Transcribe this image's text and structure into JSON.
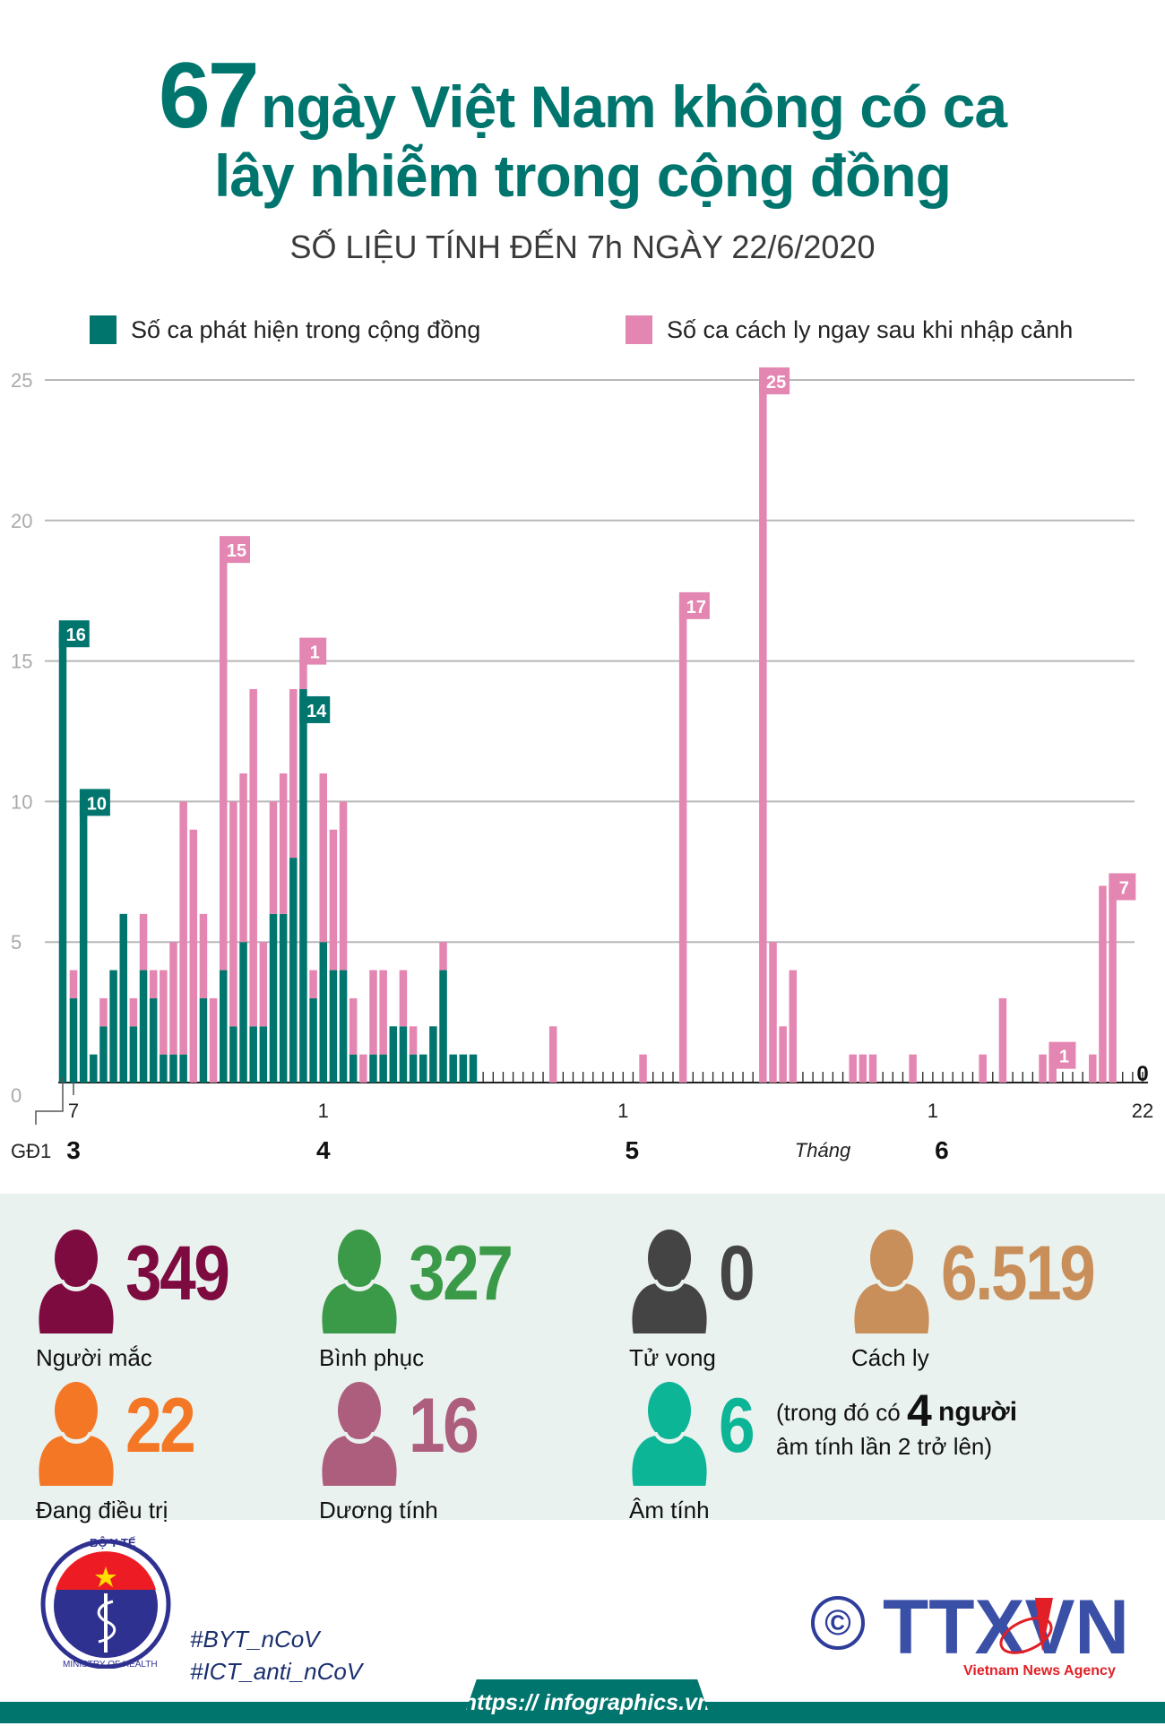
{
  "header": {
    "title_number": "67",
    "title_line1": "ngày Việt Nam không có ca",
    "title_line2": "lây nhiễm trong cộng đồng",
    "subtitle": "SỐ LIỆU TÍNH ĐẾN 7h NGÀY 22/6/2020"
  },
  "colors": {
    "community": "#00756e",
    "quarantine": "#e386b1",
    "title": "#00756e",
    "stats_bg": "#eaf2ef"
  },
  "chart_data": {
    "type": "bar",
    "stacked": true,
    "legend_position": "top",
    "grid": true,
    "ylim": [
      0,
      25
    ],
    "yticks": [
      "0",
      "5",
      "10",
      "15",
      "20",
      "25"
    ],
    "x_start": "2020-03-07",
    "x_end": "2020-06-22",
    "phase1_label": "GĐ1",
    "phase1_value": 16,
    "x_month_label": "Tháng",
    "day_labels": [
      {
        "date": "2020-03-07",
        "text": "7"
      },
      {
        "date": "2020-04-01",
        "text": "1"
      },
      {
        "date": "2020-05-01",
        "text": "1"
      },
      {
        "date": "2020-06-01",
        "text": "1"
      },
      {
        "date": "2020-06-22",
        "text": "22"
      }
    ],
    "month_labels": [
      {
        "date": "2020-03-07",
        "text": "3"
      },
      {
        "date": "2020-04-01",
        "text": "4"
      },
      {
        "date": "2020-05-01",
        "text": "5"
      },
      {
        "date": "2020-06-01",
        "text": "6"
      }
    ],
    "series": [
      {
        "name": "Số ca phát hiện trong cộng đồng",
        "color": "#00756e",
        "values": {
          "2020-03-07": 3,
          "2020-03-08": 10,
          "2020-03-09": 1,
          "2020-03-10": 2,
          "2020-03-11": 4,
          "2020-03-12": 6,
          "2020-03-13": 2,
          "2020-03-14": 4,
          "2020-03-15": 3,
          "2020-03-16": 1,
          "2020-03-17": 1,
          "2020-03-18": 1,
          "2020-03-20": 3,
          "2020-03-22": 4,
          "2020-03-23": 2,
          "2020-03-24": 5,
          "2020-03-25": 2,
          "2020-03-26": 2,
          "2020-03-27": 6,
          "2020-03-28": 6,
          "2020-03-29": 8,
          "2020-03-30": 14,
          "2020-03-31": 3,
          "2020-04-01": 5,
          "2020-04-02": 4,
          "2020-04-03": 4,
          "2020-04-04": 1,
          "2020-04-06": 1,
          "2020-04-07": 1,
          "2020-04-08": 2,
          "2020-04-09": 2,
          "2020-04-10": 1,
          "2020-04-11": 1,
          "2020-04-12": 2,
          "2020-04-13": 4,
          "2020-04-14": 1,
          "2020-04-15": 1,
          "2020-04-16": 1
        }
      },
      {
        "name": "Số ca cách ly ngay sau khi nhập cảnh",
        "color": "#e386b1",
        "values": {
          "2020-03-07": 1,
          "2020-03-10": 1,
          "2020-03-13": 1,
          "2020-03-14": 2,
          "2020-03-15": 1,
          "2020-03-16": 3,
          "2020-03-17": 4,
          "2020-03-18": 9,
          "2020-03-19": 9,
          "2020-03-20": 3,
          "2020-03-21": 3,
          "2020-03-22": 15,
          "2020-03-23": 8,
          "2020-03-24": 6,
          "2020-03-25": 12,
          "2020-03-26": 3,
          "2020-03-27": 4,
          "2020-03-28": 5,
          "2020-03-29": 6,
          "2020-03-30": 1,
          "2020-03-31": 1,
          "2020-04-01": 6,
          "2020-04-02": 5,
          "2020-04-03": 6,
          "2020-04-04": 2,
          "2020-04-05": 1,
          "2020-04-06": 3,
          "2020-04-07": 3,
          "2020-04-09": 2,
          "2020-04-10": 1,
          "2020-04-13": 1,
          "2020-04-24": 2,
          "2020-05-03": 1,
          "2020-05-07": 17,
          "2020-05-15": 25,
          "2020-05-16": 5,
          "2020-05-17": 2,
          "2020-05-18": 4,
          "2020-05-24": 1,
          "2020-05-25": 1,
          "2020-05-26": 1,
          "2020-05-30": 1,
          "2020-06-06": 1,
          "2020-06-08": 3,
          "2020-06-12": 1,
          "2020-06-13": 1,
          "2020-06-17": 1,
          "2020-06-18": 7,
          "2020-06-19": 7
        }
      }
    ],
    "value_labels": [
      {
        "date": "GĐ1",
        "series": 0,
        "text": "16"
      },
      {
        "date": "2020-03-08",
        "series": 0,
        "text": "10"
      },
      {
        "date": "2020-03-22",
        "series": 1,
        "text": "15"
      },
      {
        "date": "2020-03-30",
        "series": 0,
        "text": "14"
      },
      {
        "date": "2020-03-30",
        "series": 1,
        "text": "1"
      },
      {
        "date": "2020-05-07",
        "series": 1,
        "text": "17"
      },
      {
        "date": "2020-05-15",
        "series": 1,
        "text": "25"
      },
      {
        "date": "2020-06-13",
        "series": 1,
        "text": "1"
      },
      {
        "date": "2020-06-19",
        "series": 1,
        "text": "7"
      }
    ],
    "end_label": "0"
  },
  "stats": [
    {
      "value": "349",
      "label": "Người mắc",
      "color": "#7d0b40",
      "icon": "person-icon"
    },
    {
      "value": "327",
      "label": "Bình phục",
      "color": "#3a9a48",
      "icon": "person-icon"
    },
    {
      "value": "0",
      "label": "Tử vong",
      "color": "#444444",
      "icon": "person-icon"
    },
    {
      "value": "6.519",
      "label": "Cách ly",
      "color": "#c98f5a",
      "icon": "person-icon"
    },
    {
      "value": "22",
      "label": "Đang điều trị",
      "color": "#f47726",
      "icon": "person-icon"
    },
    {
      "value": "16",
      "label": "Dương tính",
      "color": "#ad5e7d",
      "icon": "person-icon"
    },
    {
      "value": "6",
      "label": "Âm tính",
      "color": "#0db597",
      "icon": "person-icon"
    }
  ],
  "note": {
    "prefix": "(trong đó có",
    "count": "4",
    "unit": "người",
    "line2": "âm tính lần 2 trở lên)"
  },
  "footer": {
    "ministry_logo_text": "BỘ Y TẾ · MINISTRY OF HEALTH",
    "hashtags": [
      "#BYT_nCoV",
      "#ICT_anti_nCoV"
    ],
    "agency_logo": "TTXVN",
    "agency_subtitle": "Vietnam News Agency",
    "copyright_symbol": "©",
    "url": "https:// infographics.vn"
  }
}
